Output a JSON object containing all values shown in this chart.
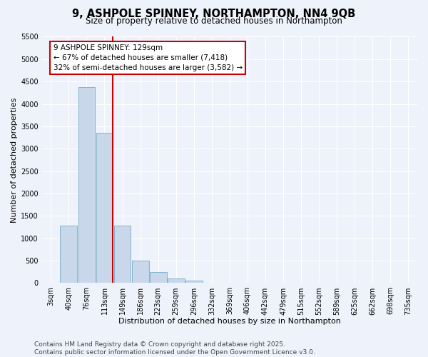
{
  "title_line1": "9, ASHPOLE SPINNEY, NORTHAMPTON, NN4 9QB",
  "title_line2": "Size of property relative to detached houses in Northampton",
  "xlabel": "Distribution of detached houses by size in Northampton",
  "ylabel": "Number of detached properties",
  "categories": [
    "3sqm",
    "40sqm",
    "76sqm",
    "113sqm",
    "149sqm",
    "186sqm",
    "223sqm",
    "259sqm",
    "296sqm",
    "332sqm",
    "369sqm",
    "406sqm",
    "442sqm",
    "479sqm",
    "515sqm",
    "552sqm",
    "589sqm",
    "625sqm",
    "662sqm",
    "698sqm",
    "735sqm"
  ],
  "bar_heights": [
    0,
    1280,
    4380,
    3350,
    1280,
    500,
    240,
    100,
    50,
    0,
    0,
    0,
    0,
    0,
    0,
    0,
    0,
    0,
    0,
    0,
    0
  ],
  "bar_color": "#c8d8ea",
  "bar_edgecolor": "#7aaac8",
  "vline_x_index": 3,
  "vline_color": "#cc0000",
  "annotation_text": "9 ASHPOLE SPINNEY: 129sqm\n← 67% of detached houses are smaller (7,418)\n32% of semi-detached houses are larger (3,582) →",
  "annotation_box_facecolor": "#ffffff",
  "annotation_box_edgecolor": "#cc0000",
  "annotation_fontsize": 7.5,
  "ylim": [
    0,
    5500
  ],
  "yticks": [
    0,
    500,
    1000,
    1500,
    2000,
    2500,
    3000,
    3500,
    4000,
    4500,
    5000,
    5500
  ],
  "footer_text": "Contains HM Land Registry data © Crown copyright and database right 2025.\nContains public sector information licensed under the Open Government Licence v3.0.",
  "bg_color": "#eef2fb",
  "grid_color": "#ffffff",
  "title_fontsize": 10.5,
  "subtitle_fontsize": 8.5,
  "axis_label_fontsize": 8,
  "tick_fontsize": 7,
  "footer_fontsize": 6.5
}
